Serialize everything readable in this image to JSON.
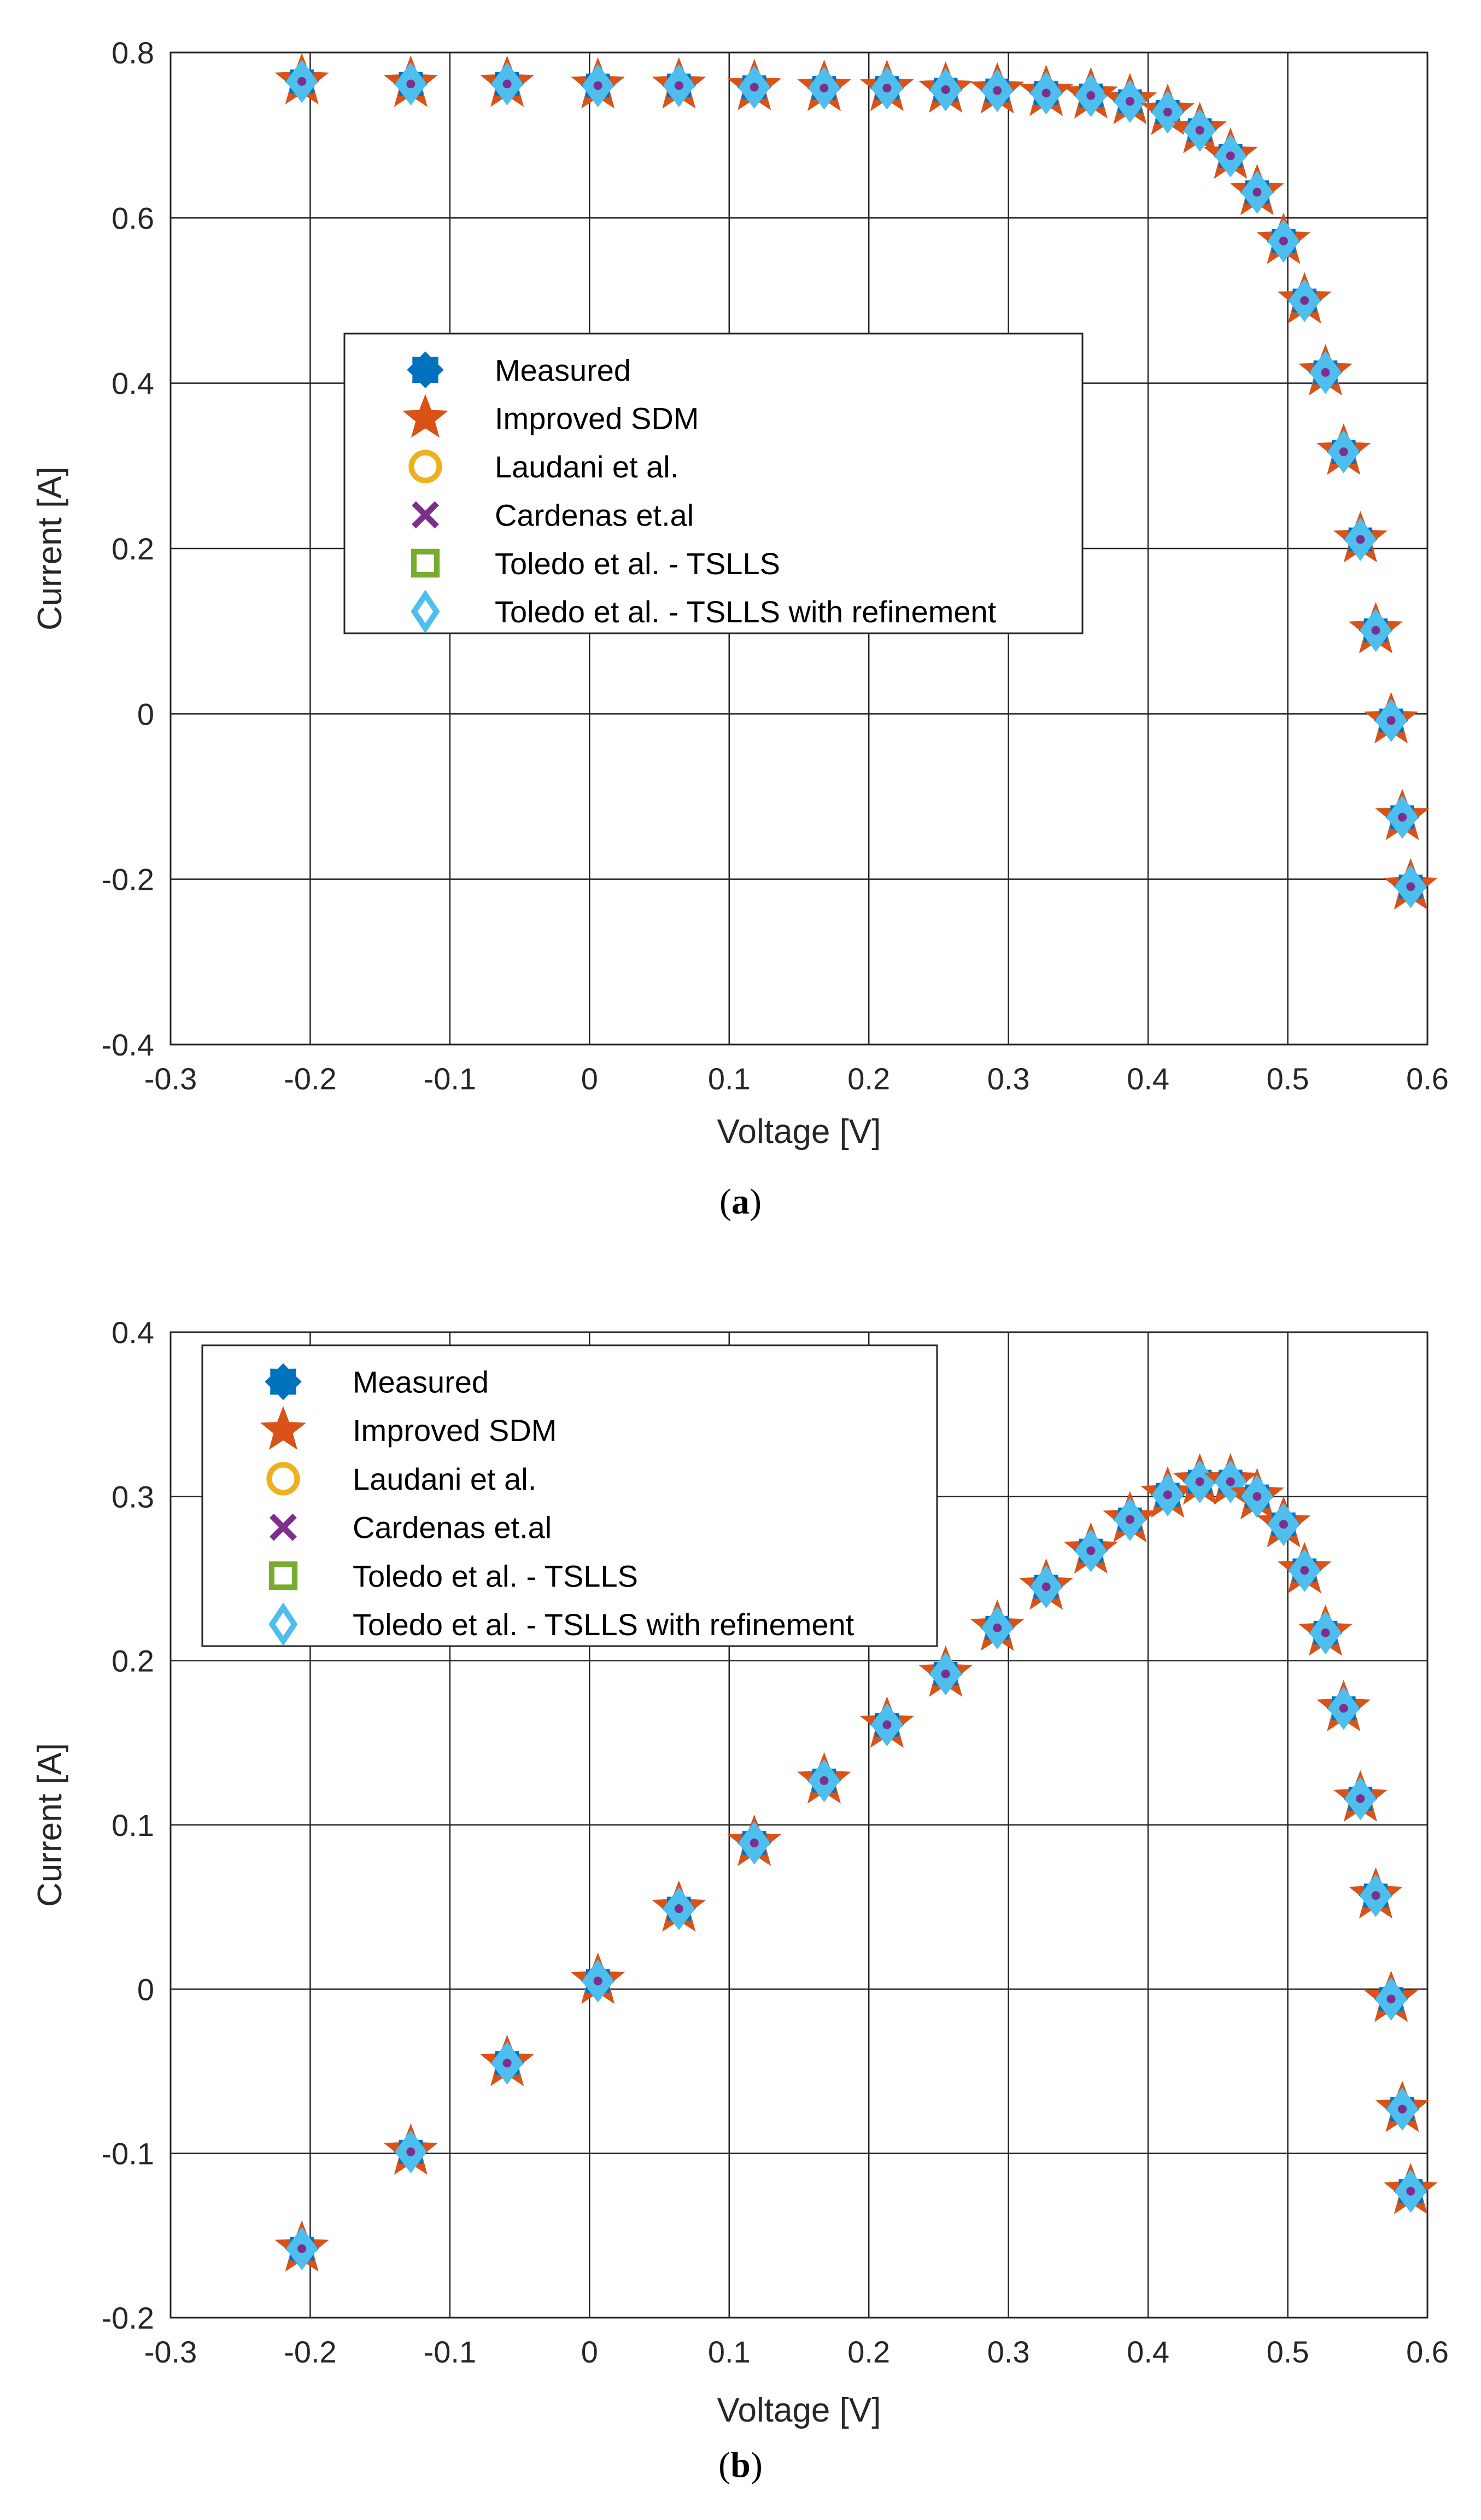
{
  "figure": {
    "legend_entries": [
      {
        "label": "Measured",
        "marker": "filled-star-burst",
        "color": "#0072BD"
      },
      {
        "label": "Improved SDM",
        "marker": "filled-star",
        "color": "#D95319"
      },
      {
        "label": "Laudani et al.",
        "marker": "open-circle",
        "color": "#EDB120"
      },
      {
        "label": "Cardenas et.al",
        "marker": "x-cross",
        "color": "#7E2F8E"
      },
      {
        "label": "Toledo et al. - TSLLS",
        "marker": "open-square",
        "color": "#77AC30"
      },
      {
        "label": "Toledo et al. - TSLLS with refinement",
        "marker": "open-diamond",
        "color": "#4DBEEE"
      }
    ]
  },
  "chart_data": [
    {
      "type": "scatter",
      "panel_label": "a",
      "caption_open": "(",
      "caption_close": ")",
      "title": "",
      "xlabel": "Voltage [V]",
      "ylabel": "Current [A]",
      "xlim": [
        -0.3,
        0.6
      ],
      "ylim": [
        -0.4,
        0.8
      ],
      "xticks": [
        "-0.3",
        "-0.2",
        "-0.1",
        "0",
        "0.1",
        "0.2",
        "0.3",
        "0.4",
        "0.5",
        "0.6"
      ],
      "yticks": [
        "-0.4",
        "-0.2",
        "0",
        "0.2",
        "0.4",
        "0.6",
        "0.8"
      ],
      "grid": true,
      "legend_position": "center-left",
      "series_names": [
        "Measured",
        "Improved SDM",
        "Laudani et al.",
        "Cardenas et.al",
        "Toledo et al. - TSLLS",
        "Toledo et al. - TSLLS with refinement"
      ],
      "x": [
        -0.206,
        -0.128,
        -0.059,
        0.006,
        0.064,
        0.118,
        0.168,
        0.213,
        0.255,
        0.292,
        0.327,
        0.359,
        0.387,
        0.414,
        0.437,
        0.459,
        0.478,
        0.497,
        0.512,
        0.527,
        0.54,
        0.552,
        0.563,
        0.574,
        0.582,
        0.588
      ],
      "y": [
        0.765,
        0.762,
        0.762,
        0.76,
        0.76,
        0.758,
        0.757,
        0.757,
        0.755,
        0.754,
        0.751,
        0.748,
        0.741,
        0.728,
        0.706,
        0.675,
        0.631,
        0.572,
        0.5,
        0.413,
        0.317,
        0.211,
        0.101,
        -0.008,
        -0.125,
        -0.209
      ]
    },
    {
      "type": "scatter",
      "panel_label": "b",
      "caption_open": "(",
      "caption_close": ")",
      "title": "",
      "xlabel": "Voltage [V]",
      "ylabel": "Current [A]",
      "xlim": [
        -0.3,
        0.6
      ],
      "ylim": [
        -0.2,
        0.4
      ],
      "xticks": [
        "-0.3",
        "-0.2",
        "-0.1",
        "0",
        "0.1",
        "0.2",
        "0.3",
        "0.4",
        "0.5",
        "0.6"
      ],
      "yticks": [
        "-0.2",
        "-0.1",
        "0",
        "0.1",
        "0.2",
        "0.3",
        "0.4"
      ],
      "grid": true,
      "legend_position": "top-left",
      "series_names": [
        "Measured",
        "Improved SDM",
        "Laudani et al.",
        "Cardenas et.al",
        "Toledo et al. - TSLLS",
        "Toledo et al. - TSLLS with refinement"
      ],
      "x": [
        -0.206,
        -0.128,
        -0.059,
        0.006,
        0.064,
        0.118,
        0.168,
        0.213,
        0.255,
        0.292,
        0.327,
        0.359,
        0.387,
        0.414,
        0.437,
        0.459,
        0.478,
        0.497,
        0.512,
        0.527,
        0.54,
        0.552,
        0.563,
        0.574,
        0.582,
        0.588
      ],
      "y": [
        -0.158,
        -0.099,
        -0.045,
        0.005,
        0.049,
        0.089,
        0.127,
        0.161,
        0.192,
        0.22,
        0.245,
        0.267,
        0.286,
        0.301,
        0.309,
        0.309,
        0.3,
        0.283,
        0.255,
        0.217,
        0.171,
        0.116,
        0.057,
        -0.006,
        -0.073,
        -0.123
      ]
    }
  ]
}
